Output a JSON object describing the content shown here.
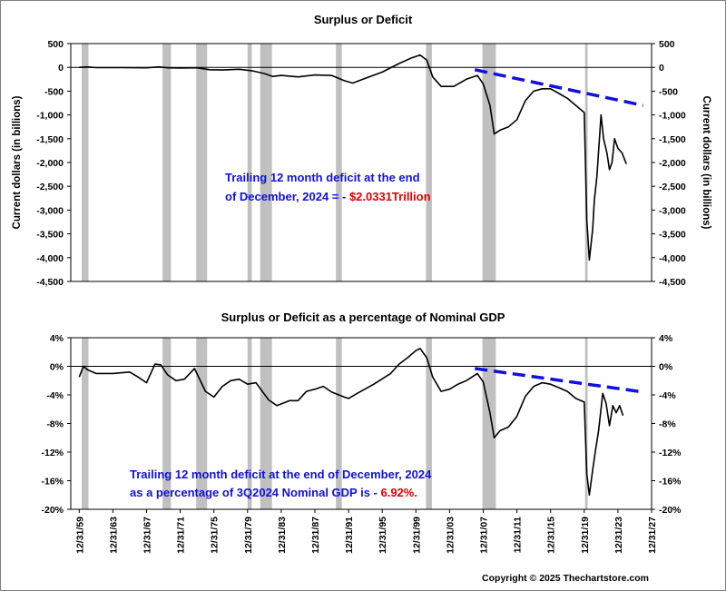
{
  "copyright": "Copyright © 2025 Thechartstore.com",
  "colors": {
    "recession": "#c0c0c0",
    "series": "#000000",
    "trend": "#1010e0",
    "annot_blue": "#1010e0",
    "annot_red": "#e00000"
  },
  "x_ticks": [
    "12/31/59",
    "12/31/63",
    "12/31/67",
    "12/31/71",
    "12/31/75",
    "12/31/79",
    "12/31/83",
    "12/31/87",
    "12/31/91",
    "12/31/95",
    "12/31/99",
    "12/31/03",
    "12/31/07",
    "12/31/11",
    "12/31/15",
    "12/31/19",
    "12/31/23",
    "12/31/27"
  ],
  "chart_data": [
    {
      "type": "line",
      "title": "Surplus or Deficit",
      "ylabel": "Current dollars (in billions)",
      "ylabel_right": "Current dollars (in billions)",
      "xlim": [
        1959,
        2028
      ],
      "ylim": [
        -4500,
        500
      ],
      "y_ticks": [
        "500",
        "0",
        "-500",
        "-1,000",
        "-1,500",
        "-2,000",
        "-2,500",
        "-3,000",
        "-3,500",
        "-4,000",
        "-4,500"
      ],
      "y_tick_values": [
        500,
        0,
        -500,
        -1000,
        -1500,
        -2000,
        -2500,
        -3000,
        -3500,
        -4000,
        -4500
      ],
      "recessions": [
        [
          1960.3,
          1961.1
        ],
        [
          1969.9,
          1970.9
        ],
        [
          1973.9,
          1975.2
        ],
        [
          1980.0,
          1980.5
        ],
        [
          1981.5,
          1982.9
        ],
        [
          1990.5,
          1991.2
        ],
        [
          2001.2,
          2001.9
        ],
        [
          2007.9,
          2009.5
        ],
        [
          2020.1,
          2020.4
        ]
      ],
      "series": [
        {
          "x": [
            1960.0,
            1961.0,
            1962.0,
            1965.0,
            1968.0,
            1969.5,
            1970.5,
            1972.0,
            1974.0,
            1975.5,
            1977.0,
            1979.0,
            1980.5,
            1982.0,
            1983.0,
            1984.0,
            1986.0,
            1988.0,
            1990.0,
            1991.5,
            1992.5,
            1994.0,
            1996.0,
            1998.0,
            1999.5,
            2000.5,
            2001.3,
            2002.0,
            2003.0,
            2004.5,
            2006.0,
            2007.3,
            2008.0,
            2008.8,
            2009.3,
            2010.0,
            2011.0,
            2012.0,
            2013.0,
            2014.0,
            2015.0,
            2016.0,
            2017.0,
            2018.0,
            2019.0,
            2020.0,
            2020.3,
            2020.6,
            2021.0,
            2021.2,
            2021.5,
            2022.0,
            2022.3,
            2022.7,
            2023.0,
            2023.3,
            2023.6,
            2024.0,
            2024.5,
            2025.0
          ],
          "values": [
            0,
            10,
            -5,
            -5,
            -10,
            10,
            -10,
            -15,
            -10,
            -50,
            -55,
            -40,
            -70,
            -130,
            -190,
            -170,
            -200,
            -160,
            -170,
            -280,
            -330,
            -230,
            -100,
            80,
            200,
            260,
            150,
            -200,
            -400,
            -400,
            -250,
            -170,
            -350,
            -800,
            -1400,
            -1320,
            -1250,
            -1100,
            -700,
            -500,
            -450,
            -450,
            -550,
            -650,
            -800,
            -950,
            -3200,
            -4050,
            -3400,
            -2800,
            -2300,
            -1000,
            -1500,
            -1800,
            -2150,
            -2000,
            -1500,
            -1700,
            -1800,
            -2030
          ]
        }
      ],
      "trend": {
        "x": [
          2007.0,
          2027.0
        ],
        "values": [
          -50,
          -800
        ]
      },
      "annotation": {
        "line1": "Trailing 12 month deficit at the end",
        "line2_prefix": "of December, 2024 = - ",
        "line2_value": "$2.0331Trillion"
      }
    },
    {
      "type": "line",
      "title": "Surplus or Deficit as a percentage of Nominal GDP",
      "xlim": [
        1959,
        2028
      ],
      "ylim": [
        -20,
        4
      ],
      "y_ticks": [
        "4%",
        "0%",
        "-4%",
        "-8%",
        "-12%",
        "-16%",
        "-20%"
      ],
      "y_tick_values": [
        4,
        0,
        -4,
        -8,
        -12,
        -16,
        -20
      ],
      "recessions": [
        [
          1960.3,
          1961.1
        ],
        [
          1969.9,
          1970.9
        ],
        [
          1973.9,
          1975.2
        ],
        [
          1980.0,
          1980.5
        ],
        [
          1981.5,
          1982.9
        ],
        [
          1990.5,
          1991.2
        ],
        [
          2001.2,
          2001.9
        ],
        [
          2007.9,
          2009.5
        ],
        [
          2020.1,
          2020.4
        ]
      ],
      "series": [
        {
          "x": [
            1960.0,
            1960.5,
            1961.0,
            1962.0,
            1964.0,
            1966.0,
            1967.0,
            1968.0,
            1969.0,
            1969.7,
            1970.5,
            1971.5,
            1972.5,
            1973.7,
            1975.0,
            1976.0,
            1977.0,
            1978.0,
            1979.0,
            1980.0,
            1981.0,
            1982.5,
            1983.5,
            1985.0,
            1986.0,
            1987.0,
            1988.0,
            1989.0,
            1990.0,
            1991.5,
            1992.0,
            1993.0,
            1995.0,
            1997.0,
            1998.0,
            1999.0,
            2000.0,
            2000.5,
            2001.3,
            2002.0,
            2003.0,
            2004.0,
            2005.0,
            2006.0,
            2007.3,
            2008.0,
            2008.8,
            2009.3,
            2010.0,
            2011.0,
            2012.0,
            2013.0,
            2014.0,
            2015.0,
            2016.0,
            2017.0,
            2018.0,
            2019.0,
            2020.0,
            2020.3,
            2020.6,
            2021.0,
            2021.3,
            2021.7,
            2022.2,
            2022.6,
            2023.0,
            2023.4,
            2023.8,
            2024.2,
            2024.6
          ],
          "values": [
            -1.5,
            0,
            -0.5,
            -1.0,
            -1.0,
            -0.8,
            -1.5,
            -2.3,
            0.3,
            0.2,
            -1.2,
            -2.0,
            -1.8,
            -0.3,
            -3.5,
            -4.3,
            -2.8,
            -2.0,
            -1.8,
            -2.5,
            -2.3,
            -4.7,
            -5.5,
            -4.8,
            -4.8,
            -3.5,
            -3.2,
            -2.8,
            -3.6,
            -4.3,
            -4.5,
            -3.8,
            -2.5,
            -1.0,
            0.3,
            1.2,
            2.2,
            2.5,
            1.2,
            -1.5,
            -3.5,
            -3.2,
            -2.5,
            -2.0,
            -1.0,
            -2.2,
            -6.5,
            -10.0,
            -9.0,
            -8.5,
            -7.0,
            -4.2,
            -2.8,
            -2.3,
            -2.5,
            -3.0,
            -3.5,
            -4.5,
            -5.0,
            -15.0,
            -18.0,
            -14.5,
            -12.0,
            -9.0,
            -3.8,
            -5.2,
            -8.3,
            -5.5,
            -6.5,
            -5.5,
            -6.9
          ]
        }
      ],
      "trend": {
        "x": [
          2007.0,
          2027.0
        ],
        "values": [
          -0.3,
          -3.6
        ]
      },
      "annotation": {
        "line1": "Trailing 12 month deficit at the end of December, 2024",
        "line2_prefix": "as a percentage of 3Q2024 Nominal GDP  is - ",
        "line2_value": "6.92%."
      }
    }
  ]
}
